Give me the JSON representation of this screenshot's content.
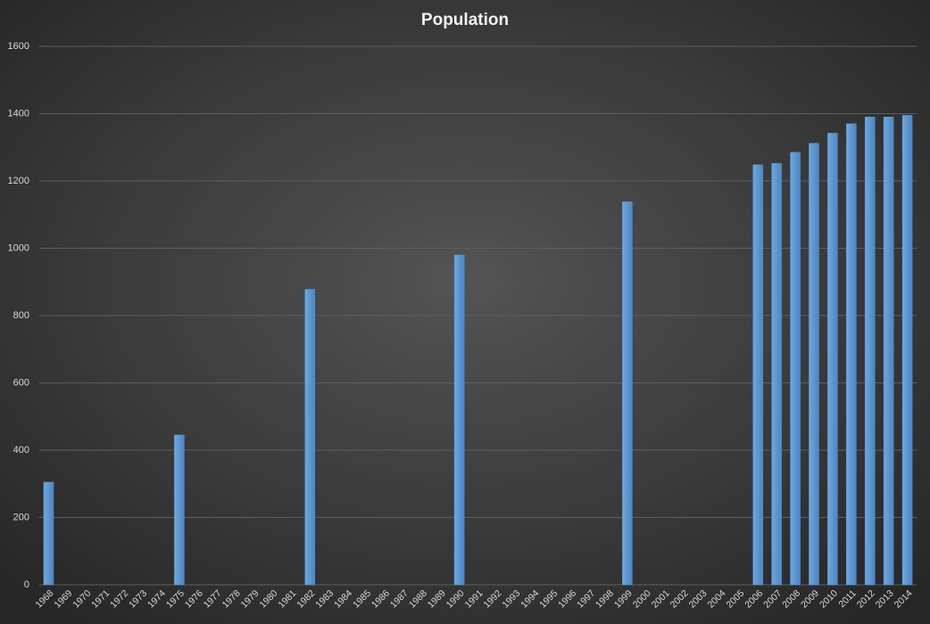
{
  "chart_data": {
    "type": "bar",
    "title": "Population",
    "categories": [
      "1968",
      "1969",
      "1970",
      "1971",
      "1972",
      "1973",
      "1974",
      "1975",
      "1976",
      "1977",
      "1978",
      "1979",
      "1980",
      "1981",
      "1982",
      "1983",
      "1984",
      "1985",
      "1986",
      "1987",
      "1988",
      "1989",
      "1990",
      "1991",
      "1992",
      "1993",
      "1994",
      "1995",
      "1996",
      "1997",
      "1998",
      "1999",
      "2000",
      "2001",
      "2002",
      "2003",
      "2004",
      "2005",
      "2006",
      "2007",
      "2008",
      "2009",
      "2010",
      "2011",
      "2012",
      "2013",
      "2014"
    ],
    "values": [
      305,
      null,
      null,
      null,
      null,
      null,
      null,
      445,
      null,
      null,
      null,
      null,
      null,
      null,
      878,
      null,
      null,
      null,
      null,
      null,
      null,
      null,
      980,
      null,
      null,
      null,
      null,
      null,
      null,
      null,
      null,
      1138,
      null,
      null,
      null,
      null,
      null,
      null,
      1248,
      1252,
      1285,
      1312,
      1342,
      1370,
      1390,
      1390,
      1395
    ],
    "color": "#5b9bd5",
    "ylim": [
      0,
      1600
    ],
    "yticks": [
      0,
      200,
      400,
      600,
      800,
      1000,
      1200,
      1400,
      1600
    ],
    "grid": true
  }
}
